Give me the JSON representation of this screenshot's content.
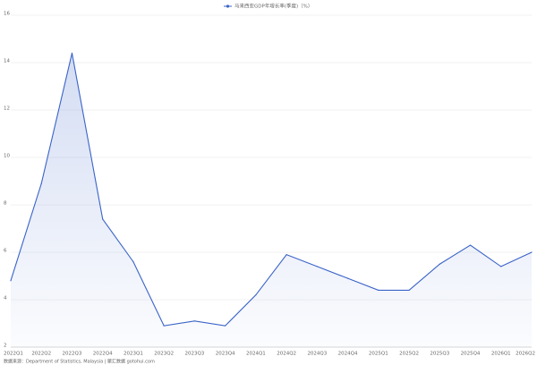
{
  "chart_data": {
    "type": "line",
    "categories": [
      "2022Q1",
      "2022Q2",
      "2022Q3",
      "2022Q4",
      "2023Q1",
      "2023Q2",
      "2023Q3",
      "2023Q4",
      "2024Q1",
      "2024Q2",
      "2024Q3",
      "2024Q4",
      "2025Q1",
      "2025Q2",
      "2025Q3",
      "2025Q4",
      "2026Q1",
      "2026Q2"
    ],
    "series": [
      {
        "name": "马来西亚GDP年增长率(季度)（%）",
        "color": "#3a63c8",
        "values": [
          4.8,
          8.9,
          14.4,
          7.4,
          5.6,
          2.9,
          3.1,
          2.9,
          4.2,
          5.9,
          5.4,
          4.9,
          4.4,
          4.4,
          5.5,
          6.3,
          5.4,
          6.0
        ]
      }
    ],
    "ylim": [
      2,
      16
    ],
    "yticks": [
      2,
      4,
      6,
      8,
      10,
      12,
      14,
      16
    ],
    "grid": true,
    "source": "数据来源：Department of Statistics, Malaysia | 聚汇数据 gotohui.com"
  }
}
